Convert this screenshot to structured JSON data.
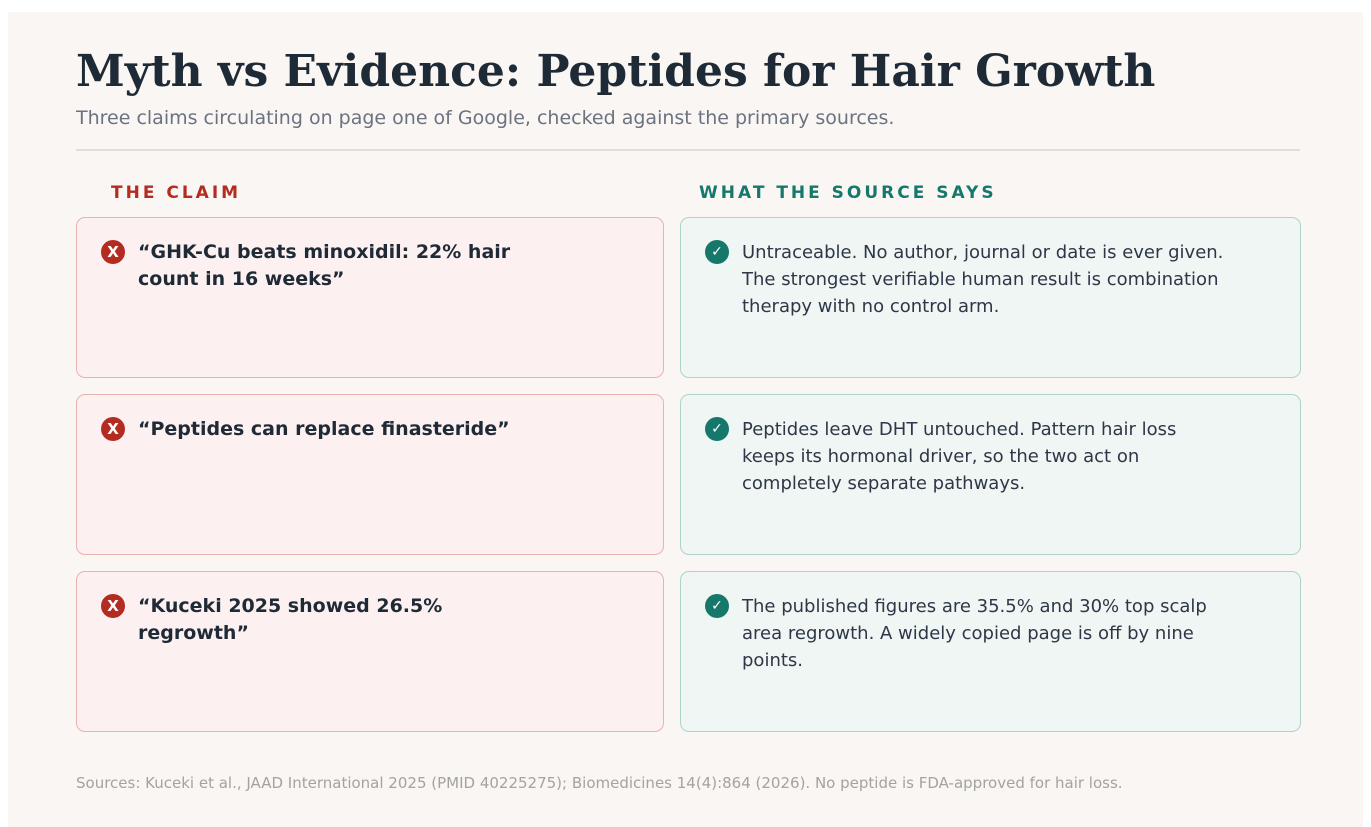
{
  "header": {
    "title": "Myth vs Evidence: Peptides for Hair Growth",
    "subtitle": "Three claims circulating on page one of Google, checked against the primary sources."
  },
  "columns": {
    "claim_heading": "THE CLAIM",
    "source_heading": "WHAT THE SOURCE SAYS"
  },
  "icons": {
    "claim_glyph": "X",
    "source_glyph": "✓",
    "claim_color": "#b42b22",
    "source_color": "#16776b"
  },
  "rows": [
    {
      "claim": "“GHK-Cu beats minoxidil: 22% hair count in 16 weeks”",
      "source": "Untraceable. No author, journal or date is ever given. The strongest verifiable human result is combination therapy with no control arm."
    },
    {
      "claim": "“Peptides can replace finasteride”",
      "source": "Peptides leave DHT untouched. Pattern hair loss keeps its hormonal driver, so the two act on completely separate pathways."
    },
    {
      "claim": "“Kuceki 2025 showed 26.5% regrowth”",
      "source": "The published figures are 35.5% and 30% top scalp area regrowth. A widely copied page is off by nine points."
    }
  ],
  "footer": {
    "sources": "Sources: Kuceki et al., JAAD International 2025 (PMID 40225275); Biomedicines 14(4):864 (2026). No peptide is FDA-approved for hair loss."
  }
}
